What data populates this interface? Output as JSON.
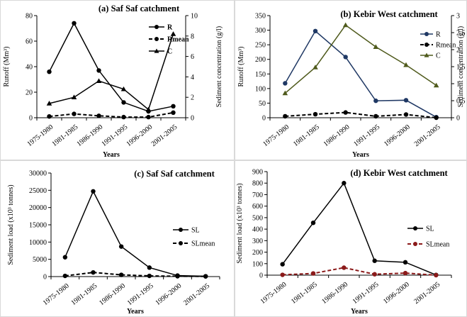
{
  "chart_data": [
    {
      "type": "line",
      "title": "(a) Saf Saf catchment",
      "xlabel": "Years",
      "ylabel": "Runoff (Mm³)",
      "y2label": "Sediment concentration (g/l)",
      "categories": [
        "1975-1980",
        "1981-1985",
        "1986-1990",
        "1991-1995",
        "1996-2000",
        "2001-2005"
      ],
      "ylim": [
        0,
        80
      ],
      "yticks": [
        0,
        20,
        40,
        60,
        80
      ],
      "y2lim": [
        0,
        10
      ],
      "y2ticks": [
        0,
        2,
        4,
        6,
        8,
        10
      ],
      "legend_position": "top-right",
      "series": [
        {
          "name": "R",
          "axis": "left",
          "marker": "circle",
          "dash": "solid",
          "color": "#000000",
          "values": [
            36,
            74,
            37,
            12,
            5,
            9
          ]
        },
        {
          "name": "Rmean",
          "axis": "left",
          "marker": "circle",
          "dash": "dashed",
          "color": "#000000",
          "values": [
            1,
            3,
            1.5,
            0.5,
            0.5,
            4
          ]
        },
        {
          "name": "C",
          "axis": "right",
          "marker": "triangle",
          "dash": "solid",
          "color": "#000000",
          "values": [
            1.4,
            2.0,
            3.6,
            2.8,
            0.8,
            8.2
          ]
        }
      ]
    },
    {
      "type": "line",
      "title": "(b) Kebir West catchment",
      "xlabel": "Years",
      "ylabel": "Runoff (Mm³)",
      "y2label": "Sediment concentration (g/l)",
      "categories": [
        "1975-1980",
        "1981-1985",
        "1986-1990",
        "1991-1995",
        "1996-2000",
        "2001-2005"
      ],
      "ylim": [
        0,
        350
      ],
      "yticks": [
        0,
        50,
        100,
        150,
        200,
        250,
        300,
        350
      ],
      "y2lim": [
        0,
        3
      ],
      "y2ticks": [
        0,
        0.5,
        1,
        1.5,
        2,
        2.5,
        3
      ],
      "y2ticklabels": [
        "0",
        "0,5",
        "1",
        "1,5",
        "2",
        "2,5",
        "3"
      ],
      "legend_position": "top-right",
      "series": [
        {
          "name": "R",
          "axis": "left",
          "marker": "circle",
          "dash": "solid",
          "color": "#1f3864",
          "values": [
            118,
            297,
            208,
            58,
            60,
            2
          ]
        },
        {
          "name": "Rmean",
          "axis": "left",
          "marker": "circle",
          "dash": "dashed",
          "color": "#000000",
          "values": [
            5,
            12,
            18,
            5,
            11,
            0
          ]
        },
        {
          "name": "C",
          "axis": "right",
          "marker": "triangle",
          "dash": "solid",
          "color": "#4f5a1c",
          "values": [
            0.72,
            1.48,
            2.72,
            2.08,
            1.55,
            0.95
          ]
        }
      ]
    },
    {
      "type": "line",
      "title": "(c) Saf Saf catchment",
      "xlabel": "Years",
      "ylabel": "Sediment load (x10³ tonnes)",
      "categories": [
        "1975-1980",
        "1981-1985",
        "1986-1990",
        "1991-1995",
        "1996-2000",
        "2001-2005"
      ],
      "ylim": [
        0,
        30000
      ],
      "yticks": [
        0,
        5000,
        10000,
        15000,
        20000,
        25000,
        30000
      ],
      "legend_position": "right",
      "series": [
        {
          "name": "SL",
          "axis": "left",
          "marker": "circle",
          "dash": "solid",
          "color": "#000000",
          "values": [
            5600,
            24700,
            8700,
            2600,
            300,
            100
          ]
        },
        {
          "name": "SLmean",
          "axis": "left",
          "marker": "circle",
          "dash": "dashed",
          "color": "#000000",
          "values": [
            200,
            1200,
            500,
            200,
            100,
            50
          ]
        }
      ]
    },
    {
      "type": "line",
      "title": "(d) Kebir West catchment",
      "xlabel": "Years",
      "ylabel": "Sediment load (x10³ tonnes)",
      "categories": [
        "1975-1980",
        "1981-1985",
        "1986-1990",
        "1991-1995",
        "1996-2000",
        "2001-2005"
      ],
      "ylim": [
        0,
        900
      ],
      "yticks": [
        0,
        100,
        200,
        300,
        400,
        500,
        600,
        700,
        800,
        900
      ],
      "legend_position": "right",
      "series": [
        {
          "name": "SL",
          "axis": "left",
          "marker": "circle",
          "dash": "solid",
          "color": "#000000",
          "values": [
            95,
            455,
            800,
            125,
            112,
            2
          ]
        },
        {
          "name": "SLmean",
          "axis": "left",
          "marker": "circle",
          "dash": "dashed",
          "color": "#8b1a1a",
          "values": [
            3,
            15,
            65,
            8,
            18,
            0
          ]
        }
      ]
    }
  ]
}
